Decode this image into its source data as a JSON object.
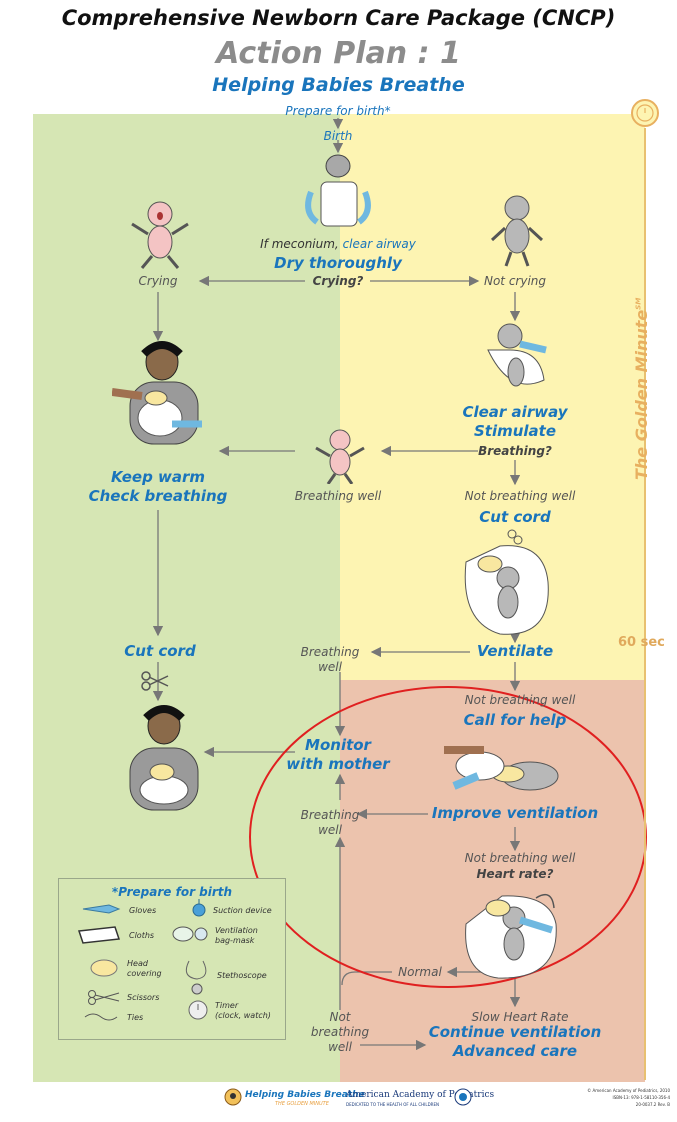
{
  "header": {
    "title": "Comprehensive Newborn Care Package (CNCP)",
    "subtitle": "Action Plan : 1",
    "program": "Helping Babies Breathe"
  },
  "flow": {
    "prepare": "Prepare for birth*",
    "birth": "Birth",
    "meconium_prefix": "If meconium,",
    "meconium_action": "clear airway",
    "dry": "Dry thoroughly",
    "crying_q": "Crying?",
    "crying": "Crying",
    "not_crying": "Not crying",
    "keep_warm": "Keep warm",
    "check_breathing": "Check breathing",
    "clear_airway": "Clear airway",
    "stimulate": "Stimulate",
    "breathing_q": "Breathing?",
    "breathing_well_1": "Breathing well",
    "not_breathing_well_1": "Not breathing well",
    "cut_cord_right": "Cut cord",
    "cut_cord_left": "Cut cord",
    "ventilate": "Ventilate",
    "breathing_well_2a": "Breathing",
    "breathing_well_2b": "well",
    "not_breathing_well_2": "Not breathing well",
    "call_help": "Call for help",
    "monitor_1": "Monitor",
    "monitor_2": "with mother",
    "improve": "Improve ventilation",
    "breathing_well_3a": "Breathing",
    "breathing_well_3b": "well",
    "not_breathing_well_3": "Not breathing well",
    "heart_rate_q": "Heart rate?",
    "normal": "Normal",
    "slow_hr": "Slow Heart Rate",
    "continue_vent": "Continue ventilation",
    "advanced": "Advanced care",
    "not_bw_a": "Not",
    "not_bw_b": "breathing",
    "not_bw_c": "well"
  },
  "timeline": {
    "golden_minute": "The Golden Minute",
    "sm": "SM",
    "sixty": "60 sec"
  },
  "legend": {
    "title": "*Prepare for birth",
    "gloves": "Gloves",
    "suction": "Suction device",
    "cloths": "Cloths",
    "vent1": "Ventilation",
    "vent2": "bag-mask",
    "head1": "Head",
    "head2": "covering",
    "stethoscope": "Stethoscope",
    "scissors": "Scissors",
    "timer1": "Timer",
    "timer2": "(clock, watch)",
    "ties": "Ties"
  },
  "footer": {
    "hbb": "Helping Babies Breathe",
    "hbb_sub": "THE GOLDEN MINUTE",
    "aap": "American Academy of Pediatrics",
    "aap_sub": "DEDICATED TO THE HEALTH OF ALL CHILDREN",
    "copy1": "© American Academy of Pediatrics, 2010",
    "copy2": "ISBN-13: 978-1-58110-356-4",
    "copy3": "20-0037.2 Rev. B"
  },
  "colors": {
    "green_zone": "#d6e6b4",
    "yellow_zone": "#fdf4b2",
    "red_zone": "#ecc3ad",
    "blue_text": "#1a75bc",
    "arrow": "#777777",
    "highlight_circle": "#e02020",
    "gold": "#e8b060"
  }
}
